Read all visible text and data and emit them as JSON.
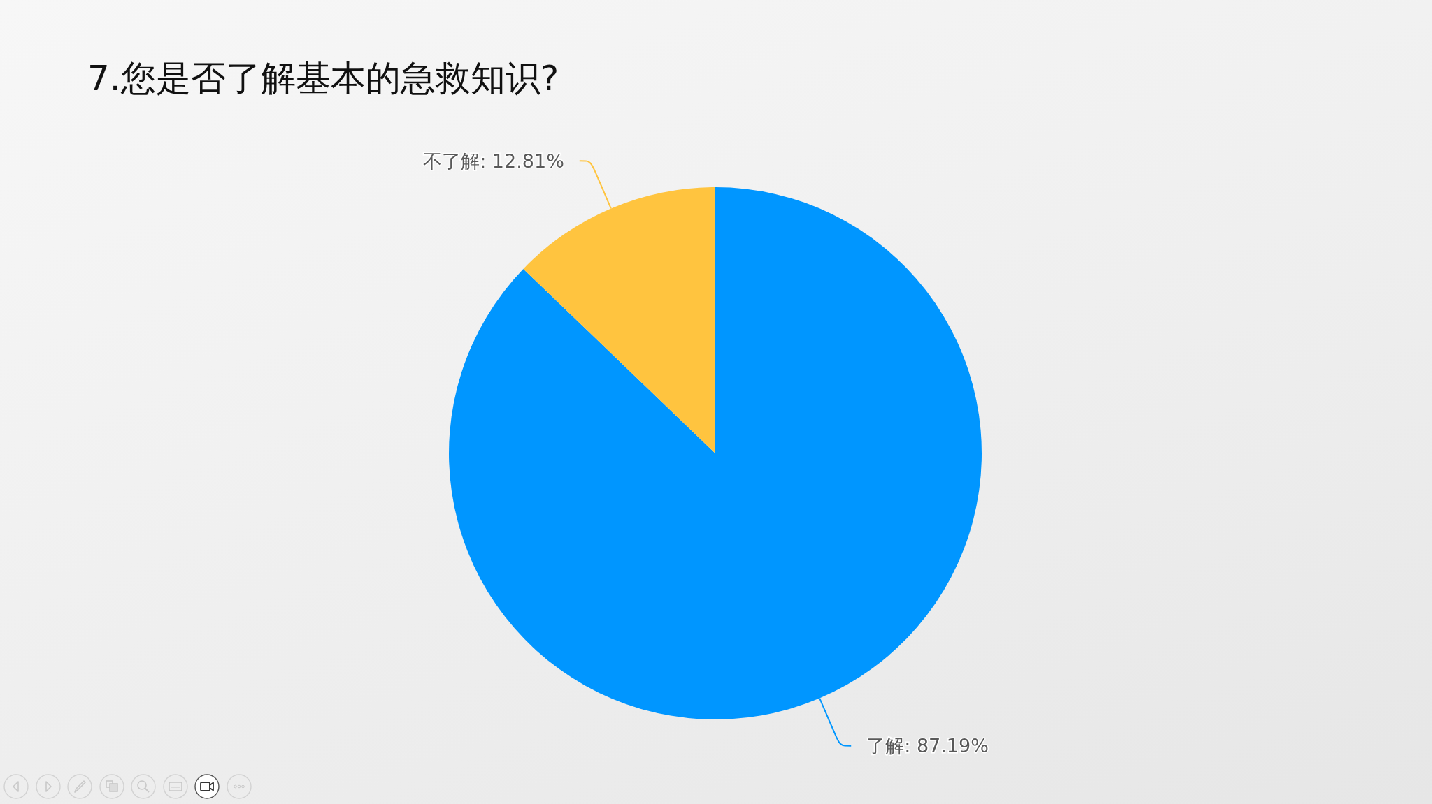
{
  "chart_data": {
    "type": "pie",
    "title": "7.您是否了解基本的急救知识?",
    "categories": [
      "了解",
      "不了解"
    ],
    "values": [
      87.19,
      12.81
    ],
    "colors": [
      "#0096ff",
      "#ffc43f"
    ],
    "value_labels": [
      ": 87.19%",
      ": 12.81%"
    ],
    "legend": false
  }
}
